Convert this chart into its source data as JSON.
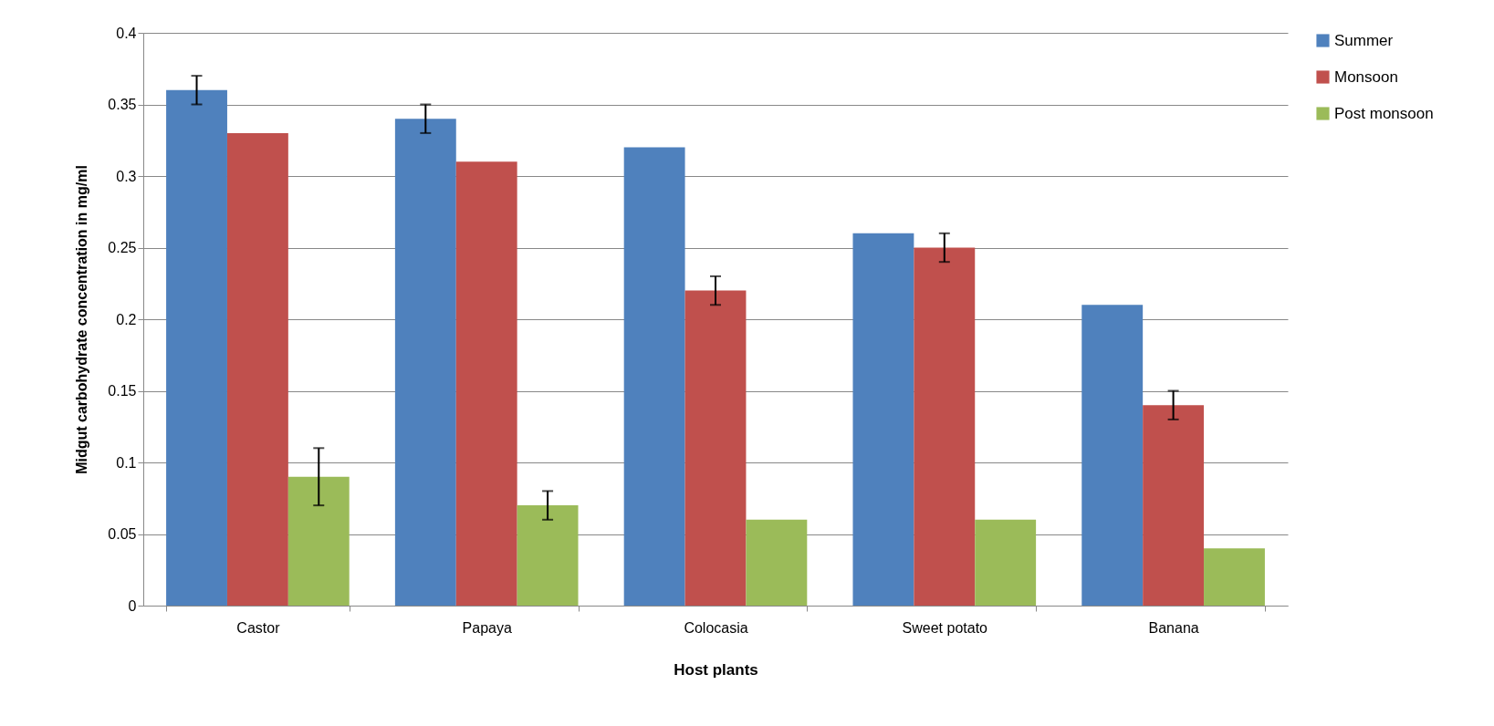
{
  "chart_data": {
    "type": "bar",
    "xlabel": "Host plants",
    "ylabel": "Midgut carbohydrate concentration in mg/ml",
    "categories": [
      "Castor",
      "Papaya",
      "Colocasia",
      "Sweet potato",
      "Banana"
    ],
    "series": [
      {
        "name": "Summer",
        "color": "#4f81bd",
        "values": [
          0.36,
          0.34,
          0.32,
          0.26,
          0.21
        ],
        "errors": [
          0.01,
          0.01,
          null,
          null,
          null
        ]
      },
      {
        "name": "Monsoon",
        "color": "#c0504d",
        "values": [
          0.33,
          0.31,
          0.22,
          0.25,
          0.14
        ],
        "errors": [
          null,
          null,
          0.01,
          0.01,
          0.01
        ]
      },
      {
        "name": "Post monsoon",
        "color": "#9bbb59",
        "values": [
          0.09,
          0.07,
          0.06,
          0.06,
          0.04
        ],
        "errors": [
          0.02,
          0.01,
          null,
          null,
          null
        ]
      }
    ],
    "ylim": [
      0,
      0.4
    ],
    "yticks": [
      0,
      0.05,
      0.1,
      0.15,
      0.2,
      0.25,
      0.3,
      0.35,
      0.4
    ],
    "grid": "y",
    "legend": "right"
  }
}
